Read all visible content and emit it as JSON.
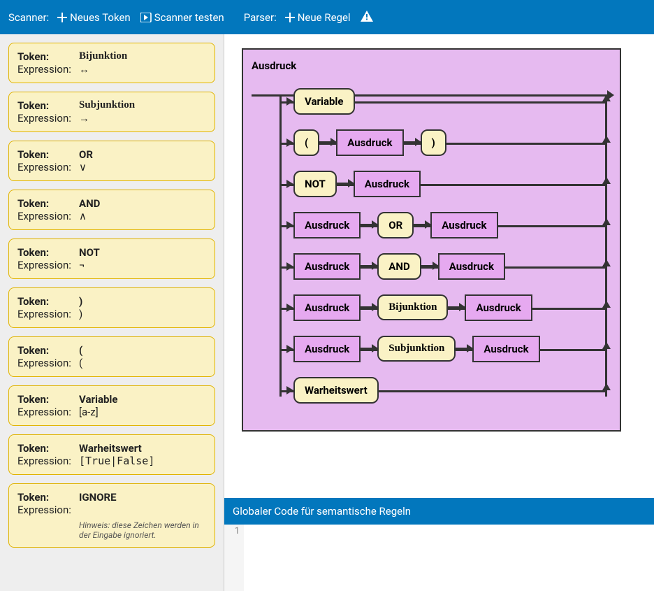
{
  "toolbar": {
    "scanner_label": "Scanner:",
    "new_token": "Neues Token",
    "test_scanner": "Scanner testen",
    "parser_label": "Parser:",
    "new_rule": "Neue Regel"
  },
  "tokens": [
    {
      "token_label": "Token:",
      "name": "Bijunktion",
      "name_serif": true,
      "expr_label": "Expression:",
      "expr": "↔"
    },
    {
      "token_label": "Token:",
      "name": "Subjunktion",
      "name_serif": true,
      "expr_label": "Expression:",
      "expr": "→"
    },
    {
      "token_label": "Token:",
      "name": "OR",
      "expr_label": "Expression:",
      "expr": "∨"
    },
    {
      "token_label": "Token:",
      "name": "AND",
      "expr_label": "Expression:",
      "expr": "∧"
    },
    {
      "token_label": "Token:",
      "name": "NOT",
      "expr_label": "Expression:",
      "expr": "¬"
    },
    {
      "token_label": "Token:",
      "name": ")",
      "expr_label": "Expression:",
      "expr": ")"
    },
    {
      "token_label": "Token:",
      "name": "(",
      "expr_label": "Expression:",
      "expr": "("
    },
    {
      "token_label": "Token:",
      "name": "Variable",
      "expr_label": "Expression:",
      "expr": "[a-z]"
    },
    {
      "token_label": "Token:",
      "name": "Warheitswert",
      "expr_label": "Expression:",
      "expr": "[True|False]",
      "expr_mono": true
    },
    {
      "token_label": "Token:",
      "name": "IGNORE",
      "expr_label": "Expression:",
      "expr": "",
      "hint": "Hinweis: diese Zeichen werden in der Eingabe ignoriert."
    }
  ],
  "rule": {
    "title": "Ausdruck",
    "branches": [
      [
        {
          "t": "term",
          "label": "Variable"
        }
      ],
      [
        {
          "t": "term",
          "label": "("
        },
        {
          "t": "nonterm",
          "label": "Ausdruck"
        },
        {
          "t": "term",
          "label": ")"
        }
      ],
      [
        {
          "t": "term",
          "label": "NOT"
        },
        {
          "t": "nonterm",
          "label": "Ausdruck"
        }
      ],
      [
        {
          "t": "nonterm",
          "label": "Ausdruck"
        },
        {
          "t": "term",
          "label": "OR"
        },
        {
          "t": "nonterm",
          "label": "Ausdruck"
        }
      ],
      [
        {
          "t": "nonterm",
          "label": "Ausdruck"
        },
        {
          "t": "term",
          "label": "AND"
        },
        {
          "t": "nonterm",
          "label": "Ausdruck"
        }
      ],
      [
        {
          "t": "nonterm",
          "label": "Ausdruck"
        },
        {
          "t": "term",
          "label": "Bijunktion",
          "serif": true
        },
        {
          "t": "nonterm",
          "label": "Ausdruck"
        }
      ],
      [
        {
          "t": "nonterm",
          "label": "Ausdruck"
        },
        {
          "t": "term",
          "label": "Subjunktion",
          "serif": true
        },
        {
          "t": "nonterm",
          "label": "Ausdruck"
        }
      ],
      [
        {
          "t": "term",
          "label": "Warheitswert"
        }
      ]
    ]
  },
  "code_header": "Globaler Code für semantische Regeln",
  "code_line": "1",
  "colors": {
    "toolbar_bg": "#0277bd",
    "left_bg": "#eeeeee",
    "token_bg": "#faf2c5",
    "token_border": "#e0b300",
    "rule_bg": "#e6baf0",
    "nonterm_bg": "#e6a9f0",
    "stroke": "#333333"
  }
}
